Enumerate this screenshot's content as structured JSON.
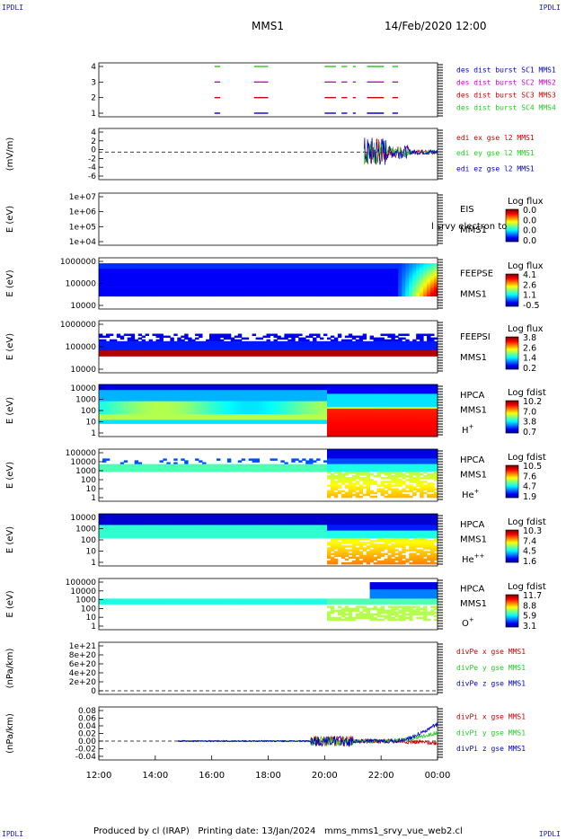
{
  "corners": {
    "top_left": "IPDLI",
    "top_right": "IPDLI",
    "bottom_left": "IPDLI",
    "bottom_right": "IPDLI"
  },
  "header": {
    "mission": "MMS1",
    "datetime": "14/Feb/2020 12:00"
  },
  "footer": {
    "produced": "Produced by cl (IRAP)",
    "printing": "Printing date: 13/Jan/2024",
    "file": "mms_mms1_srvy_vue_web2.cl"
  },
  "colors": {
    "red": "#cc0000",
    "magenta": "#cc00cc",
    "green": "#22cc22",
    "blue": "#0000cc"
  },
  "chart_data": [
    {
      "type": "line",
      "id": "burst",
      "ylabel": "",
      "yticks": [
        "4",
        "3",
        "2",
        "1"
      ],
      "legend": [
        {
          "name": "des dist burst SC1 MMS1",
          "color": "#0000cc"
        },
        {
          "name": "des dist burst SC2 MMS2",
          "color": "#cc00cc"
        },
        {
          "name": "des dist burst SC3 MMS3",
          "color": "#cc0000"
        },
        {
          "name": "des dist burst SC4 MMS4",
          "color": "#22cc22"
        }
      ],
      "intervals_hours": [
        [
          16.1,
          16.3
        ],
        [
          17.5,
          18.0
        ],
        [
          20.0,
          20.4
        ],
        [
          20.6,
          20.8
        ],
        [
          21.0,
          21.1
        ],
        [
          21.5,
          22.1
        ],
        [
          22.4,
          22.6
        ]
      ]
    },
    {
      "type": "line",
      "id": "edi",
      "ylabel": "(mV/m)",
      "yticks": [
        "4",
        "2",
        "0",
        "-2",
        "-4",
        "-6"
      ],
      "ylim": [
        -6,
        5
      ],
      "legend": [
        {
          "name": "edi ex gse l2 MMS1",
          "color": "#cc0000"
        },
        {
          "name": "edi ey gse l2 MMS1",
          "color": "#22cc22"
        },
        {
          "name": "edi ez gse l2 MMS1",
          "color": "#0000cc"
        }
      ]
    },
    {
      "type": "heatmap",
      "id": "eis",
      "ylabel": "E (eV)",
      "yticks": [
        "1e+07",
        "1e+06",
        "1e+05",
        "1e+04"
      ],
      "labels": [
        "EIS",
        "MMS1"
      ],
      "overlay": "l srvy electron to",
      "colorbar": {
        "title": "Log flux",
        "ticks": [
          "0.0",
          "0.0",
          "0.0",
          "0.0"
        ]
      }
    },
    {
      "type": "heatmap",
      "id": "feepse",
      "ylabel": "E (eV)",
      "yticks": [
        "1000000",
        "100000",
        "10000"
      ],
      "labels": [
        "FEEPSE",
        "MMS1"
      ],
      "colorbar": {
        "title": "Log flux",
        "ticks": [
          "4.1",
          "2.6",
          "1.1",
          "-0.5"
        ]
      }
    },
    {
      "type": "heatmap",
      "id": "feepsi",
      "ylabel": "E (eV)",
      "yticks": [
        "1000000",
        "100000",
        "10000"
      ],
      "labels": [
        "FEEPSI",
        "MMS1"
      ],
      "colorbar": {
        "title": "Log flux",
        "ticks": [
          "3.8",
          "2.6",
          "1.4",
          "0.2"
        ]
      }
    },
    {
      "type": "heatmap",
      "id": "hpca_h",
      "ylabel": "E (eV)",
      "yticks": [
        "10000",
        "1000",
        "100",
        "10",
        "1"
      ],
      "labels": [
        "HPCA",
        "MMS1",
        "H+"
      ],
      "colorbar": {
        "title": "Log fdist",
        "ticks": [
          "10.2",
          "7.0",
          "3.8",
          "0.7"
        ]
      }
    },
    {
      "type": "heatmap",
      "id": "hpca_he",
      "ylabel": "E (eV)",
      "yticks": [
        "100000",
        "10000",
        "1000",
        "100",
        "10",
        "1"
      ],
      "labels": [
        "HPCA",
        "MMS1",
        "He+"
      ],
      "colorbar": {
        "title": "Log fdist",
        "ticks": [
          "10.5",
          "7.6",
          "4.7",
          "1.9"
        ]
      }
    },
    {
      "type": "heatmap",
      "id": "hpca_hepp",
      "ylabel": "E (eV)",
      "yticks": [
        "10000",
        "1000",
        "100",
        "10",
        "1"
      ],
      "labels": [
        "HPCA",
        "MMS1",
        "He++"
      ],
      "colorbar": {
        "title": "Log fdist",
        "ticks": [
          "10.3",
          "7.4",
          "4.5",
          "1.6"
        ]
      }
    },
    {
      "type": "heatmap",
      "id": "hpca_o",
      "ylabel": "E (eV)",
      "yticks": [
        "100000",
        "10000",
        "1000",
        "100",
        "10",
        "1"
      ],
      "labels": [
        "HPCA",
        "MMS1",
        "O+"
      ],
      "colorbar": {
        "title": "Log fdist",
        "ticks": [
          "11.7",
          "8.8",
          "5.9",
          "3.1"
        ]
      }
    },
    {
      "type": "line",
      "id": "divpe",
      "ylabel": "(nPa/km)",
      "yticks": [
        "1e+21",
        "8e+20",
        "6e+20",
        "4e+20",
        "2e+20",
        "0"
      ],
      "legend": [
        {
          "name": "divPe x gse MMS1",
          "color": "#cc0000"
        },
        {
          "name": "divPe y gse MMS1",
          "color": "#22cc22"
        },
        {
          "name": "divPe z gse MMS1",
          "color": "#0000cc"
        }
      ]
    },
    {
      "type": "line",
      "id": "divpi",
      "ylabel": "(nPa/km)",
      "yticks": [
        "0.08",
        "0.06",
        "0.04",
        "0.02",
        "0.00",
        "-0.02",
        "-0.04"
      ],
      "ylim": [
        -0.045,
        0.09
      ],
      "legend": [
        {
          "name": "divPi x gse MMS1",
          "color": "#cc0000"
        },
        {
          "name": "divPi y gse MMS1",
          "color": "#22cc22"
        },
        {
          "name": "divPi z gse MMS1",
          "color": "#0000cc"
        }
      ]
    }
  ],
  "xaxis": {
    "ticks": [
      "12:00",
      "14:00",
      "16:00",
      "18:00",
      "20:00",
      "22:00",
      "00:00"
    ],
    "start_hour": 12,
    "end_hour": 24
  }
}
